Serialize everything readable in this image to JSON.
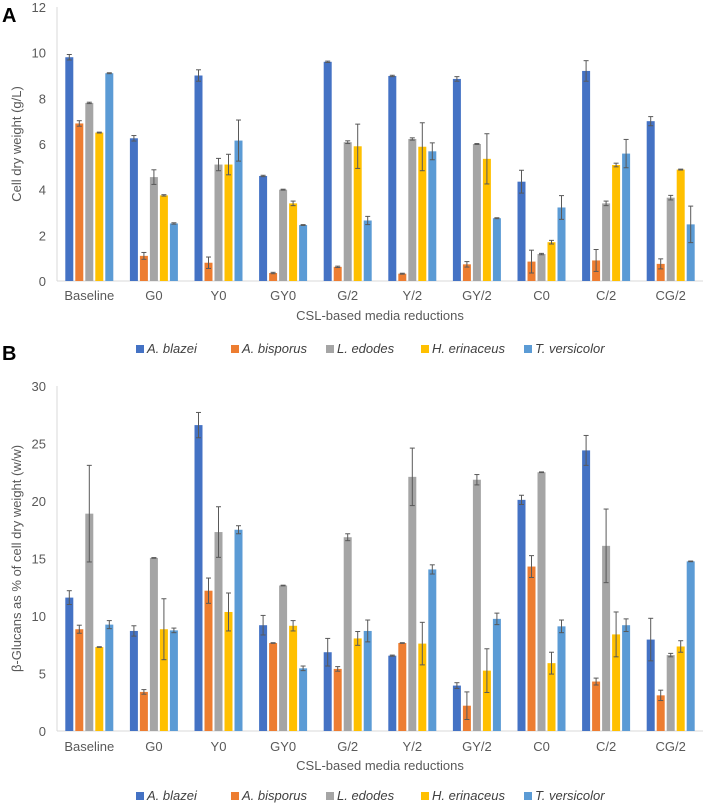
{
  "chart_data": [
    {
      "type": "bar",
      "panel_label": "A",
      "title": "",
      "xlabel": "CSL-based media reductions",
      "ylabel": "Cell dry weight (g/L)",
      "ylim": [
        0,
        12
      ],
      "yticks": [
        0,
        2,
        4,
        6,
        8,
        10,
        12
      ],
      "grid": false,
      "legend": "bottom",
      "categories": [
        "Baseline",
        "G0",
        "Y0",
        "GY0",
        "G/2",
        "Y/2",
        "GY/2",
        "C0",
        "C/2",
        "CG/2"
      ],
      "series": [
        {
          "name": "A. blazei",
          "color": "#4472C4",
          "values": [
            9.8,
            6.25,
            9.0,
            4.6,
            9.6,
            8.98,
            8.85,
            4.35,
            9.2,
            7.0
          ],
          "errors": [
            0.12,
            0.12,
            0.25,
            0.03,
            0.03,
            0.03,
            0.1,
            0.5,
            0.45,
            0.2
          ]
        },
        {
          "name": "A. bisporus",
          "color": "#ED7D31",
          "values": [
            6.9,
            1.1,
            0.8,
            0.35,
            0.62,
            0.32,
            0.73,
            0.85,
            0.9,
            0.75
          ],
          "errors": [
            0.12,
            0.15,
            0.25,
            0.03,
            0.03,
            0.02,
            0.12,
            0.5,
            0.48,
            0.22
          ]
        },
        {
          "name": "L. edodes",
          "color": "#A5A5A5",
          "values": [
            7.8,
            4.55,
            5.1,
            4.0,
            6.08,
            6.22,
            6.0,
            1.18,
            3.4,
            3.65
          ],
          "errors": [
            0.03,
            0.32,
            0.27,
            0.02,
            0.06,
            0.05,
            0.02,
            0.03,
            0.1,
            0.1
          ]
        },
        {
          "name": "H. erinaceus",
          "color": "#FFC000",
          "values": [
            6.5,
            3.75,
            5.1,
            3.4,
            5.9,
            5.88,
            5.35,
            1.7,
            5.08,
            4.88
          ],
          "errors": [
            0.02,
            0.03,
            0.45,
            0.1,
            0.97,
            1.05,
            1.1,
            0.08,
            0.08,
            0.02
          ]
        },
        {
          "name": "T. versicolor",
          "color": "#5B9BD5",
          "values": [
            9.1,
            2.52,
            6.15,
            2.45,
            2.65,
            5.68,
            2.75,
            3.22,
            5.58,
            2.48
          ],
          "errors": [
            0.02,
            0.03,
            0.9,
            0.02,
            0.18,
            0.37,
            0.02,
            0.52,
            0.62,
            0.8
          ]
        }
      ]
    },
    {
      "type": "bar",
      "panel_label": "B",
      "title": "",
      "xlabel": "CSL-based media reductions",
      "ylabel": "β-Glucans as % of cell dry weight (w/w)",
      "ylim": [
        0,
        30
      ],
      "yticks": [
        0,
        5,
        10,
        15,
        20,
        25,
        30
      ],
      "grid": false,
      "legend": "top and bottom",
      "categories": [
        "Baseline",
        "G0",
        "Y0",
        "GY0",
        "G/2",
        "Y/2",
        "GY/2",
        "C0",
        "C/2",
        "CG/2"
      ],
      "series": [
        {
          "name": "A. blazei",
          "color": "#4472C4",
          "values": [
            11.6,
            8.7,
            26.6,
            9.2,
            6.85,
            6.55,
            3.95,
            20.1,
            24.4,
            7.95
          ],
          "errors": [
            0.6,
            0.45,
            1.1,
            0.85,
            1.2,
            0.05,
            0.25,
            0.4,
            1.3,
            1.85
          ]
        },
        {
          "name": "A. bisporus",
          "color": "#ED7D31",
          "values": [
            8.85,
            3.4,
            12.2,
            7.65,
            5.4,
            7.65,
            2.2,
            14.3,
            4.3,
            3.1
          ],
          "errors": [
            0.35,
            0.2,
            1.1,
            0.03,
            0.2,
            0.03,
            1.2,
            0.95,
            0.3,
            0.45
          ]
        },
        {
          "name": "L. edodes",
          "color": "#A5A5A5",
          "values": [
            18.9,
            15.05,
            17.3,
            12.65,
            16.85,
            22.1,
            21.85,
            22.5,
            16.1,
            6.6
          ],
          "errors": [
            4.2,
            0.03,
            2.2,
            0.03,
            0.3,
            2.5,
            0.45,
            0.03,
            3.2,
            0.15
          ]
        },
        {
          "name": "H. erinaceus",
          "color": "#FFC000",
          "values": [
            7.3,
            8.85,
            10.35,
            9.15,
            8.05,
            7.6,
            5.25,
            5.9,
            8.4,
            7.35
          ],
          "errors": [
            0.03,
            2.65,
            1.65,
            0.45,
            0.6,
            1.85,
            1.9,
            0.95,
            1.95,
            0.5
          ]
        },
        {
          "name": "T. versicolor",
          "color": "#5B9BD5",
          "values": [
            9.25,
            8.75,
            17.5,
            5.45,
            8.7,
            14.05,
            9.75,
            9.1,
            9.2,
            14.75
          ],
          "errors": [
            0.35,
            0.2,
            0.35,
            0.2,
            0.95,
            0.4,
            0.5,
            0.55,
            0.55,
            0.03
          ]
        }
      ]
    }
  ]
}
